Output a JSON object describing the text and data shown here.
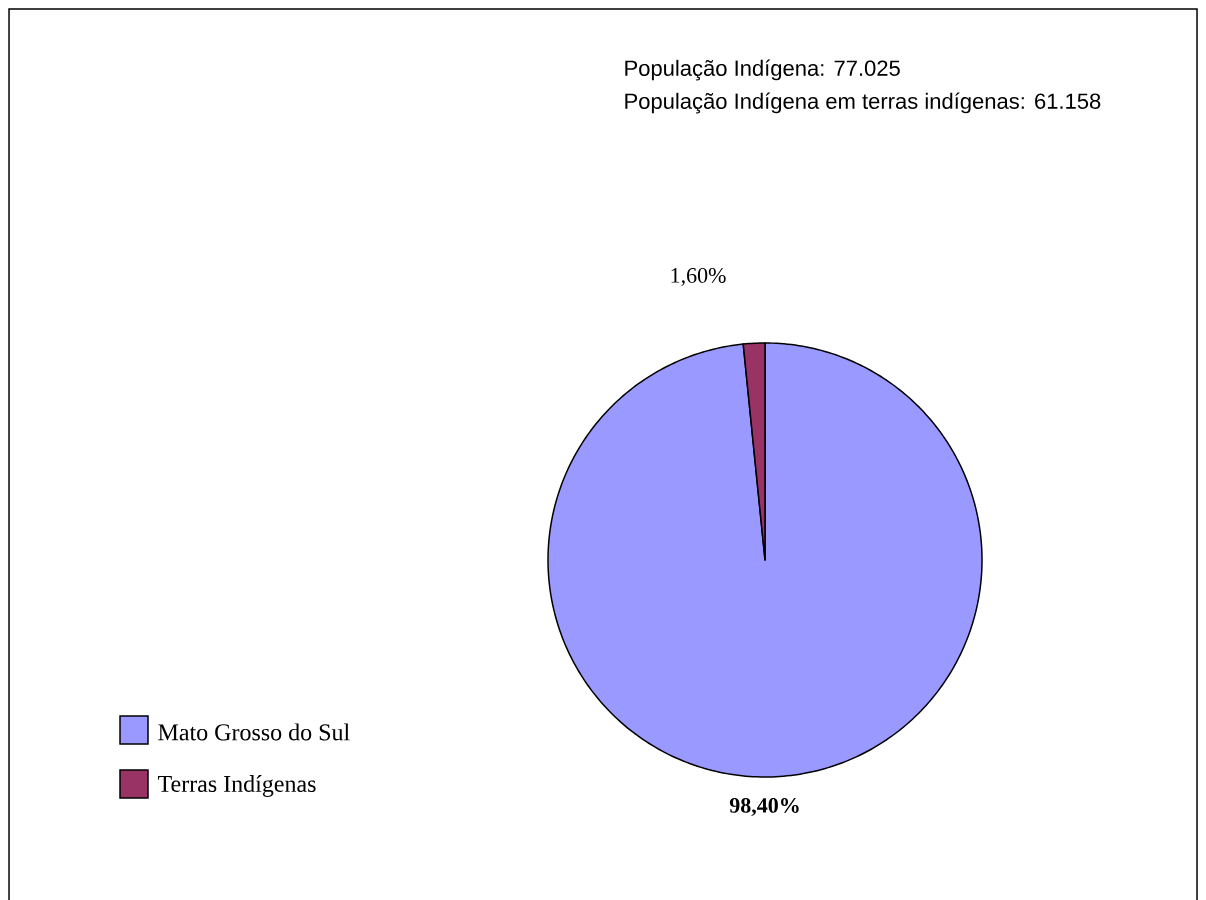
{
  "chart_data": {
    "type": "pie",
    "categories": [
      "Mato Grosso do Sul",
      "Terras Indígenas"
    ],
    "values": [
      98.4,
      1.6
    ],
    "colors": [
      "#9999ff",
      "#993366"
    ],
    "value_labels": [
      "98,40%",
      "1,60%"
    ],
    "legend": "bottom left",
    "annotations": [
      "População Indígena: 77.025",
      "População Indígena em terras indígenas: 61.158"
    ]
  }
}
